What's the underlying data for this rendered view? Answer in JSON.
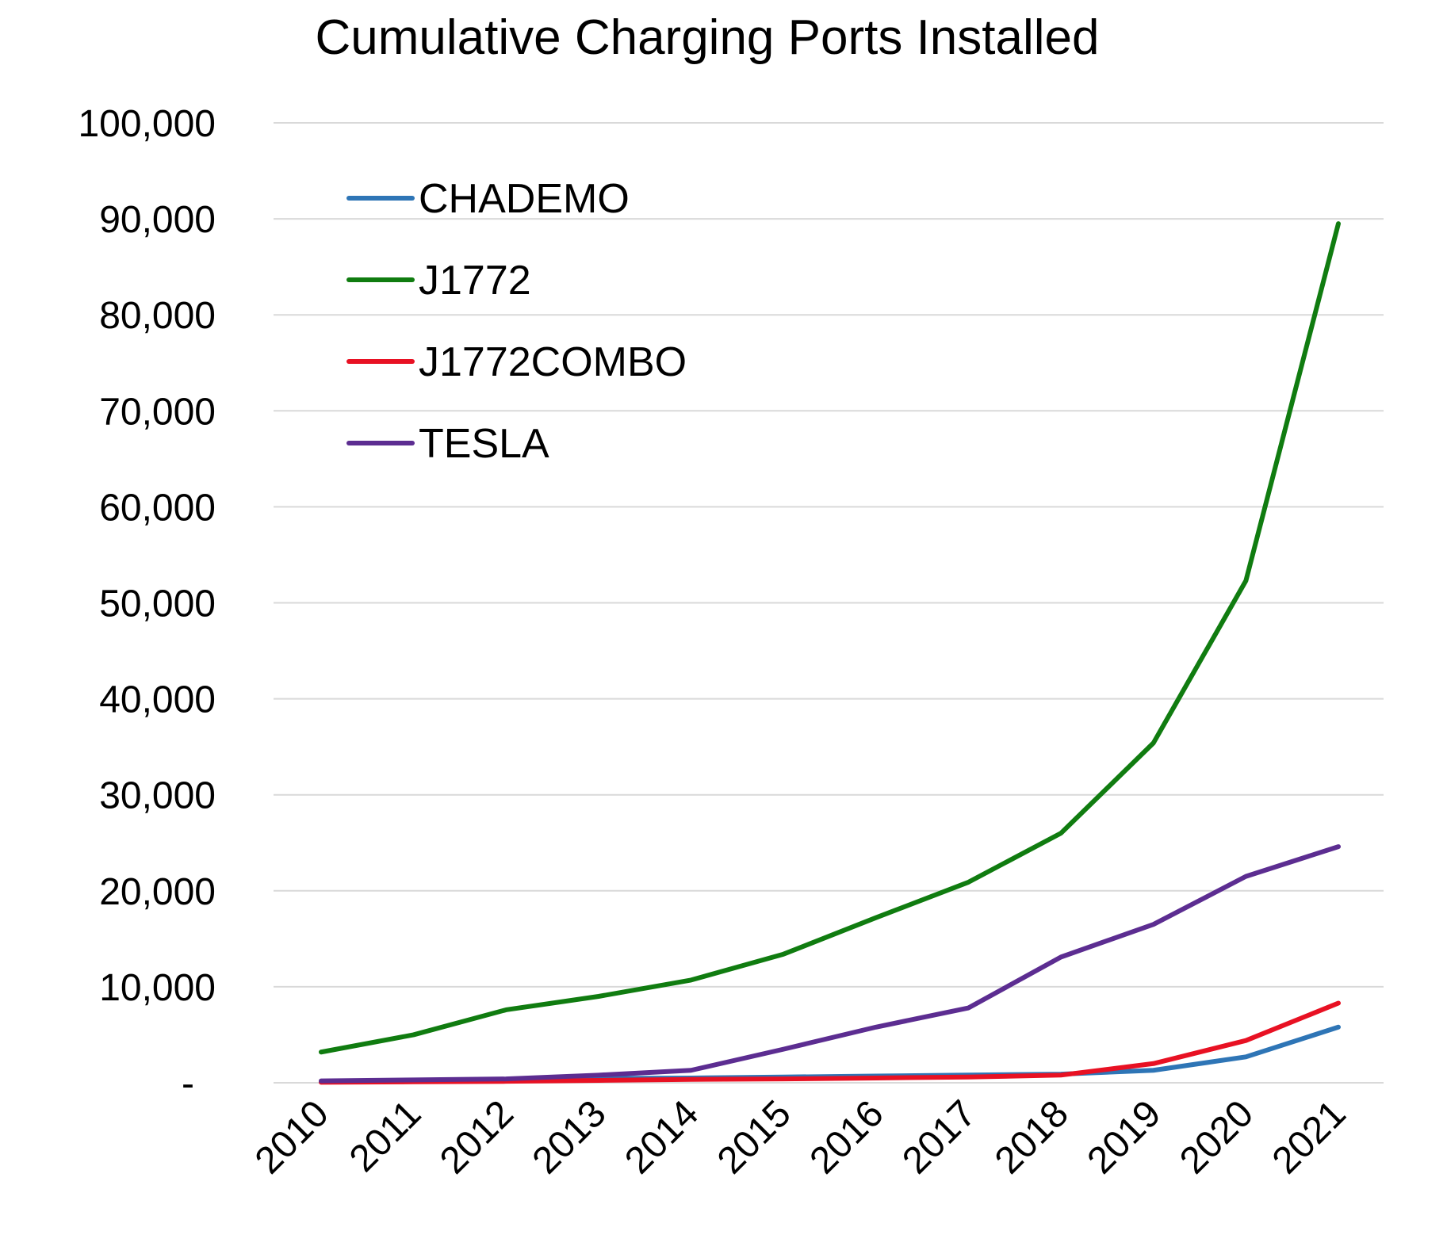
{
  "chart_data": {
    "type": "line",
    "title": "Cumulative Charging Ports Installed",
    "xlabel": "",
    "ylabel": "",
    "categories": [
      "2010",
      "2011",
      "2012",
      "2013",
      "2014",
      "2015",
      "2016",
      "2017",
      "2018",
      "2019",
      "2020",
      "2021"
    ],
    "ylim": [
      0,
      100000
    ],
    "yticks": [
      0,
      10000,
      20000,
      30000,
      40000,
      50000,
      60000,
      70000,
      80000,
      90000,
      100000
    ],
    "ytick_labels": [
      "-",
      "10,000",
      "20,000",
      "30,000",
      "40,000",
      "50,000",
      "60,000",
      "70,000",
      "80,000",
      "90,000",
      "100,000"
    ],
    "grid": true,
    "legend_position": "top-left",
    "series": [
      {
        "name": "CHADEMO",
        "color": "#2e75b6",
        "values": [
          100,
          200,
          350,
          450,
          500,
          600,
          700,
          800,
          900,
          1300,
          2700,
          5800
        ]
      },
      {
        "name": "J1772",
        "color": "#107c10",
        "values": [
          3200,
          5000,
          7600,
          9000,
          10700,
          13400,
          17200,
          20900,
          26000,
          35400,
          52300,
          89500
        ]
      },
      {
        "name": "J1772COMBO",
        "color": "#e81123",
        "values": [
          50,
          100,
          150,
          250,
          350,
          400,
          500,
          600,
          800,
          2000,
          4400,
          8300
        ]
      },
      {
        "name": "TESLA",
        "color": "#5c2d91",
        "values": [
          200,
          300,
          400,
          800,
          1300,
          3500,
          5800,
          7800,
          13100,
          16500,
          21500,
          24600
        ]
      }
    ]
  }
}
